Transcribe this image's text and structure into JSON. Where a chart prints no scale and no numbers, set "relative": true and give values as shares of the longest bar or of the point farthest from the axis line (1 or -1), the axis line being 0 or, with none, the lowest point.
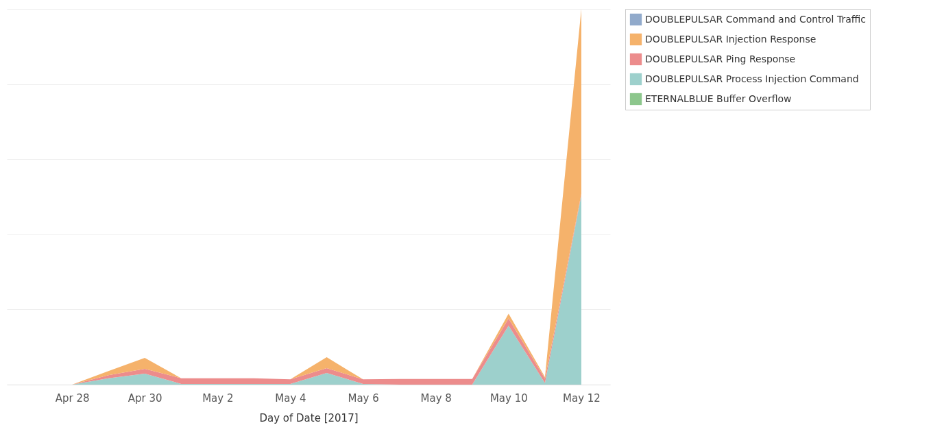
{
  "chart_data": {
    "type": "area",
    "stacked": true,
    "relative": true,
    "xlabel": "Day of Date [2017]",
    "x": [
      "2017-04-27",
      "2017-04-28",
      "2017-04-29",
      "2017-04-30",
      "2017-05-01",
      "2017-05-02",
      "2017-05-03",
      "2017-05-04",
      "2017-05-05",
      "2017-05-06",
      "2017-05-07",
      "2017-05-08",
      "2017-05-09",
      "2017-05-10",
      "2017-05-11",
      "2017-05-12"
    ],
    "xlim": [
      "2017-04-26T05:00",
      "2017-05-12T19:00"
    ],
    "xticks": [
      {
        "value": "2017-04-28",
        "label": "Apr 28"
      },
      {
        "value": "2017-04-30",
        "label": "Apr 30"
      },
      {
        "value": "2017-05-02",
        "label": "May 2"
      },
      {
        "value": "2017-05-04",
        "label": "May 4"
      },
      {
        "value": "2017-05-06",
        "label": "May 6"
      },
      {
        "value": "2017-05-08",
        "label": "May 8"
      },
      {
        "value": "2017-05-10",
        "label": "May 10"
      },
      {
        "value": "2017-05-12",
        "label": "May 12"
      }
    ],
    "series": [
      {
        "name": "DOUBLEPULSAR Process Injection Command",
        "color": "#9dd0cc",
        "values": [
          0,
          0,
          0.017,
          0.029,
          0.002,
          0.002,
          0.002,
          0.002,
          0.031,
          0.002,
          0,
          0,
          0,
          0.157,
          0.004,
          0.504
        ]
      },
      {
        "name": "DOUBLEPULSAR Ping Response",
        "color": "#ec8c8c",
        "values": [
          0,
          0,
          0.008,
          0.013,
          0.015,
          0.015,
          0.015,
          0.012,
          0.013,
          0.012,
          0.015,
          0.015,
          0.015,
          0.019,
          0.012,
          0.004
        ]
      },
      {
        "name": "DOUBLEPULSAR Injection Response",
        "color": "#f5b26b",
        "values": [
          0,
          0,
          0.011,
          0.029,
          0,
          0,
          0,
          0,
          0.029,
          0,
          0,
          0,
          0,
          0.013,
          0.004,
          0.492
        ]
      },
      {
        "name": "DOUBLEPULSAR Command and Control Traffic",
        "color": "#91aacb",
        "values": [
          null,
          null,
          null,
          null,
          null,
          null,
          null,
          null,
          null,
          null,
          null,
          null,
          null,
          null,
          null,
          null
        ]
      },
      {
        "name": "ETERNALBLUE Buffer Overflow",
        "color": "#8cc68c",
        "values": [
          null,
          null,
          null,
          null,
          null,
          null,
          null,
          null,
          null,
          null,
          null,
          null,
          null,
          null,
          null,
          null
        ]
      }
    ],
    "grid": "y",
    "legend": "top right"
  }
}
